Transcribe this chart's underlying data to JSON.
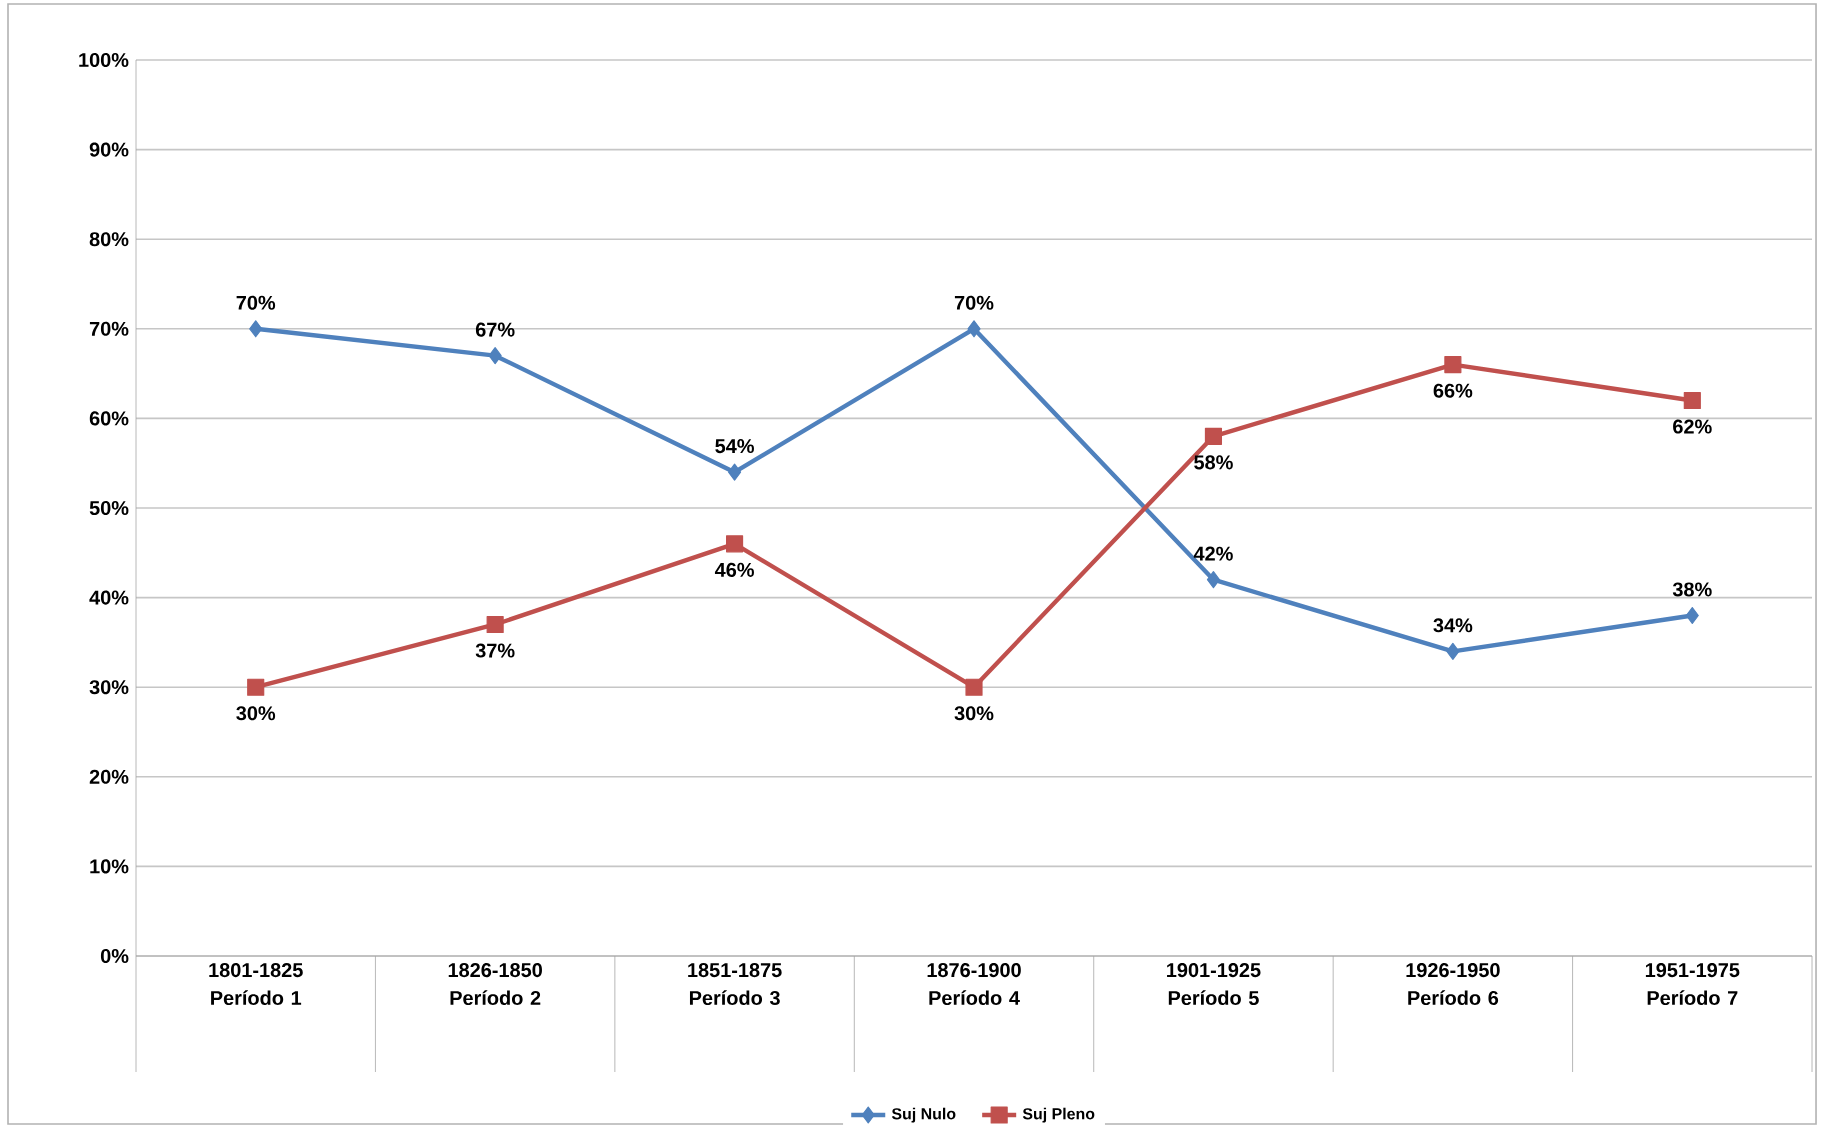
{
  "chart_data": {
    "type": "line",
    "categories": [
      "1801-1825 Período 1",
      "1826-1850 Período 2",
      "1851-1875 Período 3",
      "1876-1900 Período 4",
      "1901-1925 Período 5",
      "1926-1950 Período 6",
      "1951-1975 Período 7"
    ],
    "series": [
      {
        "name": "Suj Nulo",
        "color": "#4f81bd",
        "marker": "diamond",
        "values": [
          70,
          67,
          54,
          70,
          42,
          34,
          38
        ],
        "value_labels": [
          "70%",
          "67%",
          "54%",
          "70%",
          "42%",
          "34%",
          "38%"
        ]
      },
      {
        "name": "Suj Pleno",
        "color": "#c0504d",
        "marker": "square",
        "values": [
          30,
          37,
          46,
          30,
          58,
          66,
          62
        ],
        "value_labels": [
          "30%",
          "37%",
          "46%",
          "30%",
          "58%",
          "66%",
          "62%"
        ]
      }
    ],
    "ylim": [
      0,
      100
    ],
    "yticks": [
      {
        "value": 0,
        "label": "0%"
      },
      {
        "value": 10,
        "label": "10%"
      },
      {
        "value": 20,
        "label": "20%"
      },
      {
        "value": 30,
        "label": "30%"
      },
      {
        "value": 40,
        "label": "40%"
      },
      {
        "value": 50,
        "label": "50%"
      },
      {
        "value": 60,
        "label": "60%"
      },
      {
        "value": 70,
        "label": "70%"
      },
      {
        "value": 80,
        "label": "80%"
      },
      {
        "value": 90,
        "label": "90%"
      },
      {
        "value": 100,
        "label": "100%"
      }
    ],
    "grid": "y",
    "legend": "bottom",
    "line_style": "solid"
  }
}
